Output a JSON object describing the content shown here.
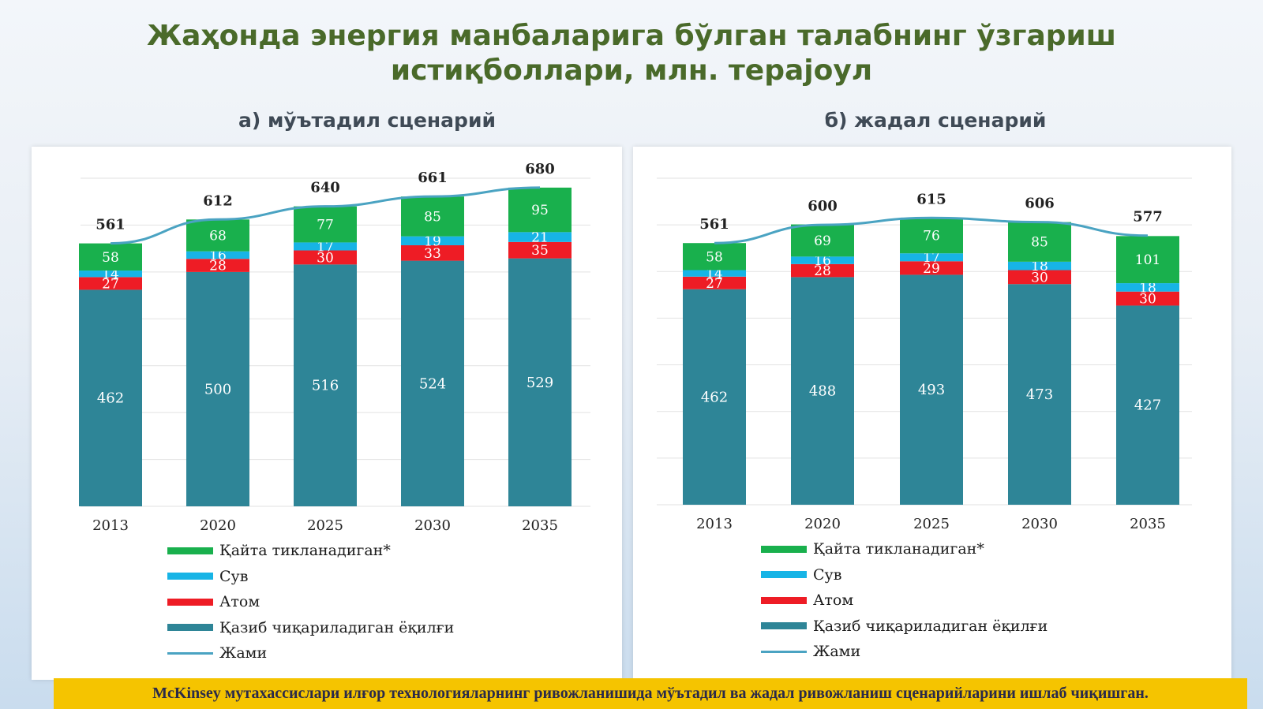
{
  "title_line1": "Жаҳонда энергия манбаларига бўлган талабнинг ўзгариш",
  "title_line2": "истиқболлари, млн. тераjоул",
  "footer_text": "McKinsey мутахассислари илғор технологияларнинг ривожланишида мўътадил ва жадал ривожланиш сценарийларини ишлаб чиқишган.",
  "colors": {
    "renewable": "#19b04d",
    "hydro": "#17b4e6",
    "nuclear": "#ee1c25",
    "fossil": "#2e8597",
    "total": "#4aa3c2"
  },
  "legend": [
    {
      "key": "renewable",
      "label": "Қайта тикланадиган*",
      "kind": "bar"
    },
    {
      "key": "hydro",
      "label": "Сув",
      "kind": "bar"
    },
    {
      "key": "nuclear",
      "label": "Атом",
      "kind": "bar"
    },
    {
      "key": "fossil",
      "label": "Қазиб чиқариладиган ёқилғи",
      "kind": "bar"
    },
    {
      "key": "total",
      "label": "Жами",
      "kind": "line"
    }
  ],
  "chart_data": [
    {
      "type": "bar",
      "stacked": true,
      "title": "а) мўътадил сценарий",
      "categories": [
        "2013",
        "2020",
        "2025",
        "2030",
        "2035"
      ],
      "series": [
        {
          "name": "Қазиб чиқариладиган ёқилғи",
          "key": "fossil",
          "values": [
            462,
            500,
            516,
            524,
            529
          ]
        },
        {
          "name": "Атом",
          "key": "nuclear",
          "values": [
            27,
            28,
            30,
            33,
            35
          ]
        },
        {
          "name": "Сув",
          "key": "hydro",
          "values": [
            14,
            16,
            17,
            19,
            21
          ]
        },
        {
          "name": "Қайта тикланадиган*",
          "key": "renewable",
          "values": [
            58,
            68,
            77,
            85,
            95
          ]
        },
        {
          "name": "Жами",
          "key": "total",
          "type": "line",
          "values": [
            561,
            612,
            640,
            661,
            680
          ]
        }
      ],
      "ylim": [
        0,
        700
      ],
      "grid": true,
      "legend_position": "bottom"
    },
    {
      "type": "bar",
      "stacked": true,
      "title": "б) жадал сценарий",
      "categories": [
        "2013",
        "2020",
        "2025",
        "2030",
        "2035"
      ],
      "series": [
        {
          "name": "Қазиб чиқариладиган ёқилғи",
          "key": "fossil",
          "values": [
            462,
            488,
            493,
            473,
            427
          ]
        },
        {
          "name": "Атом",
          "key": "nuclear",
          "values": [
            27,
            28,
            29,
            30,
            30
          ]
        },
        {
          "name": "Сув",
          "key": "hydro",
          "values": [
            14,
            16,
            17,
            18,
            18
          ]
        },
        {
          "name": "Қайта тикланадиган*",
          "key": "renewable",
          "values": [
            58,
            69,
            76,
            85,
            101
          ]
        },
        {
          "name": "Жами",
          "key": "total",
          "type": "line",
          "values": [
            561,
            600,
            615,
            606,
            577
          ]
        }
      ],
      "ylim": [
        0,
        700
      ],
      "grid": true,
      "legend_position": "bottom"
    }
  ]
}
